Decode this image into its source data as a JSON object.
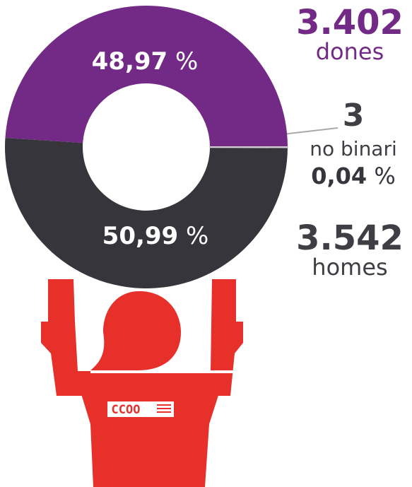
{
  "chart_data": {
    "type": "pie",
    "categories": [
      "dones",
      "no binari",
      "homes"
    ],
    "values": [
      48.97,
      0.04,
      50.99
    ],
    "value_labels": [
      "48,97",
      "0,04",
      "50,99"
    ],
    "unit": "%",
    "counts": [
      3402,
      3,
      3542
    ],
    "count_labels": [
      "3.402",
      "3",
      "3.542"
    ],
    "colors": [
      "#722a86",
      "#cfcfcf",
      "#36353b"
    ],
    "logo": "CCOO"
  }
}
